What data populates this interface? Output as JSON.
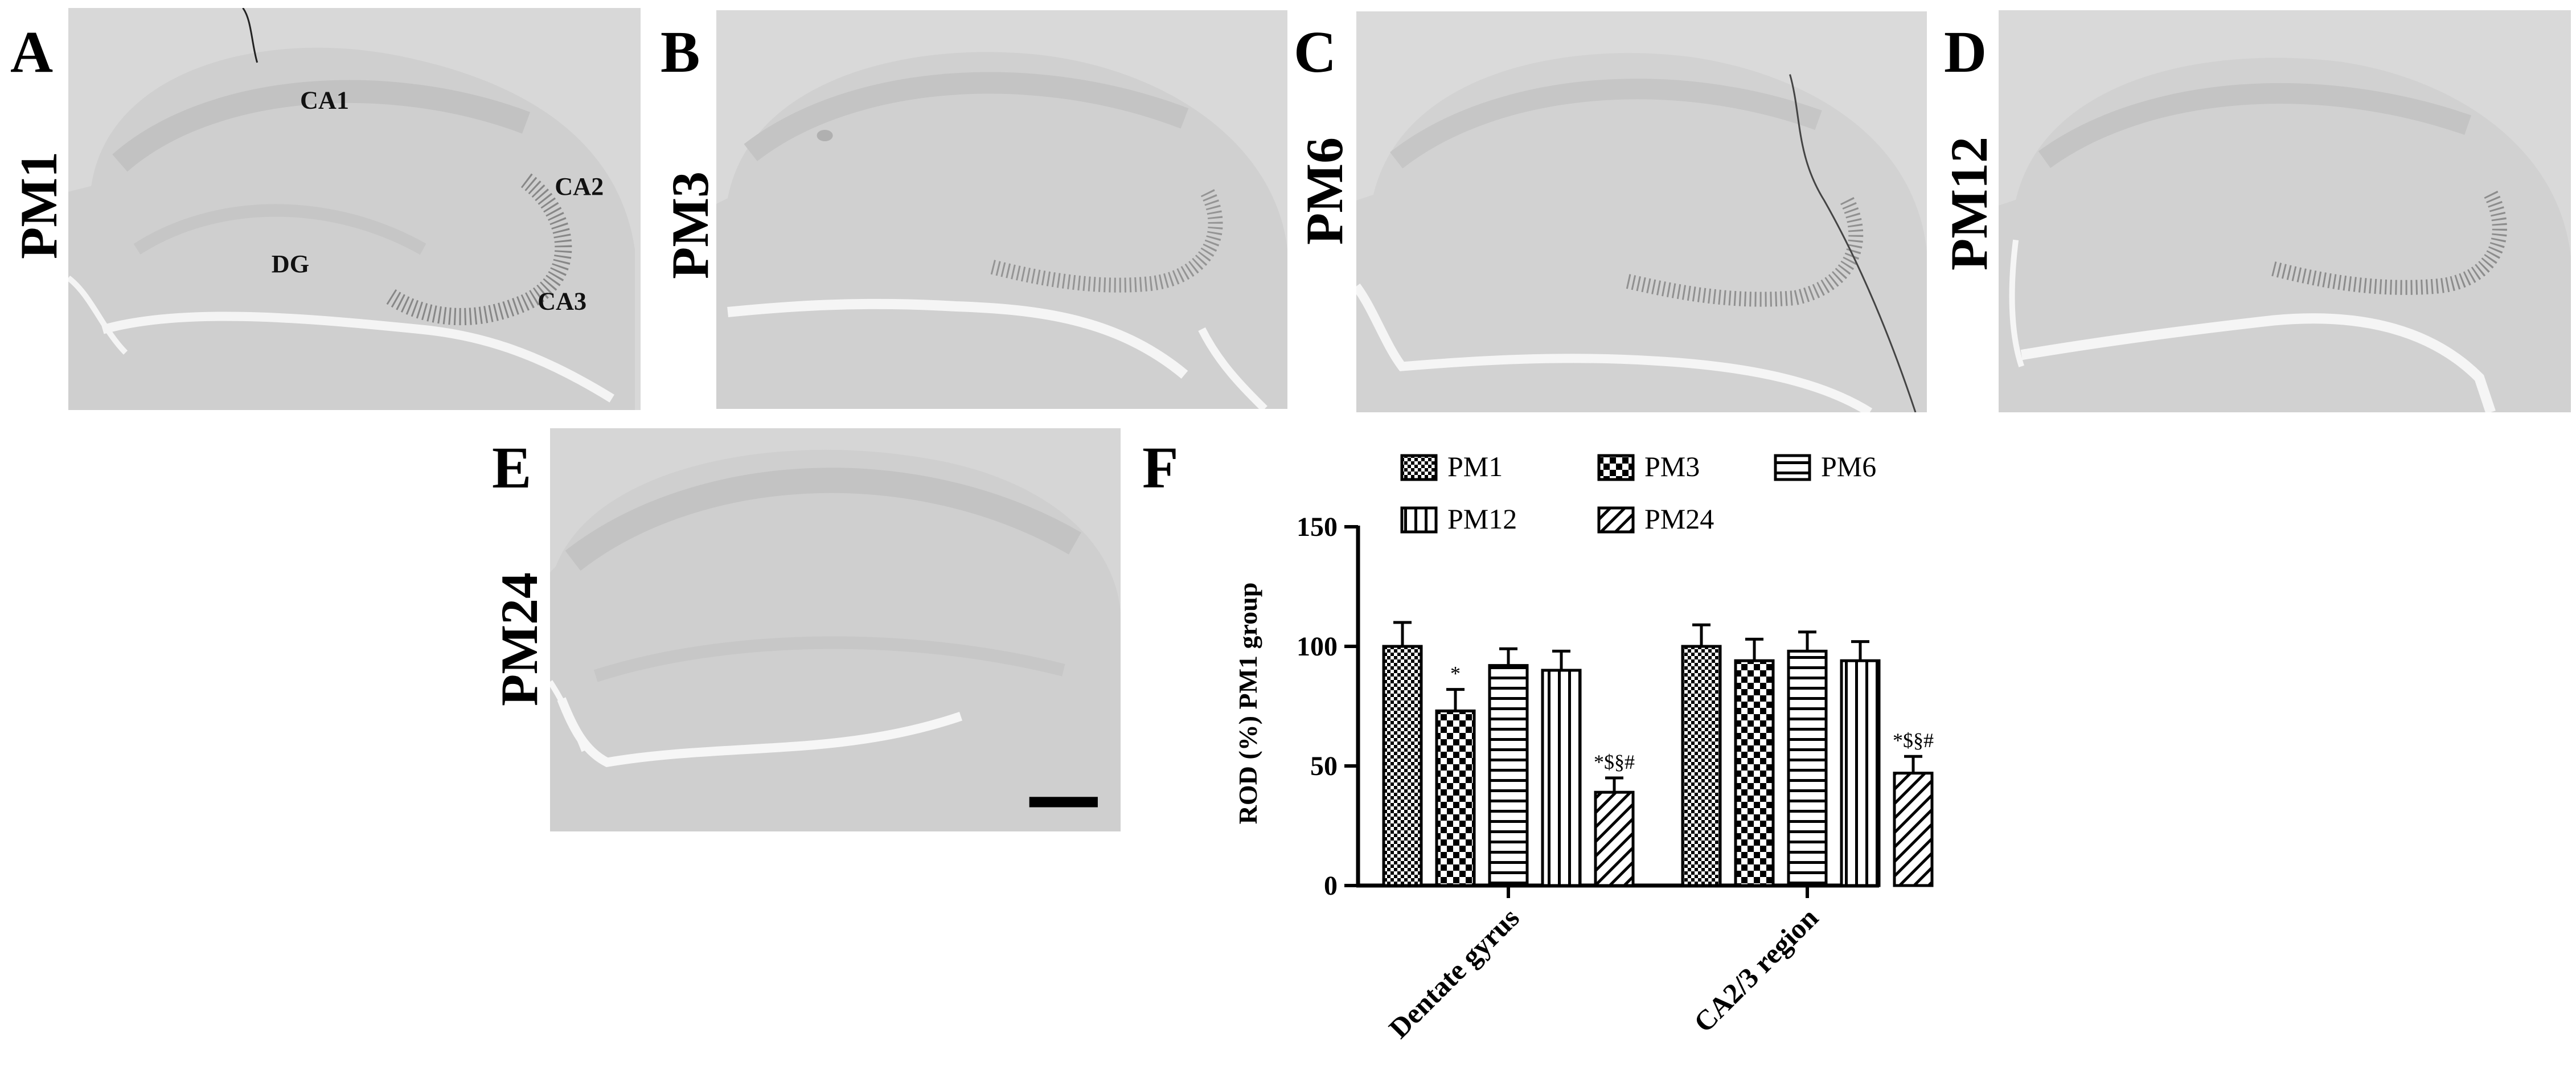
{
  "panels": [
    {
      "letter": "A",
      "label": "PM1"
    },
    {
      "letter": "B",
      "label": "PM3"
    },
    {
      "letter": "C",
      "label": "PM6"
    },
    {
      "letter": "D",
      "label": "PM12"
    },
    {
      "letter": "E",
      "label": "PM24"
    },
    {
      "letter": "F"
    }
  ],
  "region_labels": {
    "ca1": "CA1",
    "ca2": "CA2",
    "ca3": "CA3",
    "dg": "DG"
  },
  "chart_data": {
    "type": "bar",
    "categories": [
      "Dentate gyrus",
      "CA2/3 region"
    ],
    "series": [
      {
        "name": "PM1",
        "pattern": "checker-fine",
        "values": [
          100,
          100
        ],
        "errors": [
          10,
          9
        ]
      },
      {
        "name": "PM3",
        "pattern": "checker-coarse",
        "values": [
          73,
          94
        ],
        "errors": [
          9,
          9
        ]
      },
      {
        "name": "PM6",
        "pattern": "horizontal",
        "values": [
          92,
          98
        ],
        "errors": [
          7,
          8
        ]
      },
      {
        "name": "PM12",
        "pattern": "vertical",
        "values": [
          90,
          94
        ],
        "errors": [
          8,
          8
        ]
      },
      {
        "name": "PM24",
        "pattern": "diagonal",
        "values": [
          39,
          47
        ],
        "errors": [
          6,
          7
        ]
      }
    ],
    "annotations": [
      {
        "category": 0,
        "series": 1,
        "text": "*"
      },
      {
        "category": 0,
        "series": 4,
        "text": "*$§#"
      },
      {
        "category": 1,
        "series": 4,
        "text": "*$§#"
      }
    ],
    "ylabel": "ROD (%) PM1 group",
    "ylim": [
      0,
      150
    ],
    "yticks": [
      0,
      50,
      100,
      150
    ],
    "legend_position": "top"
  }
}
